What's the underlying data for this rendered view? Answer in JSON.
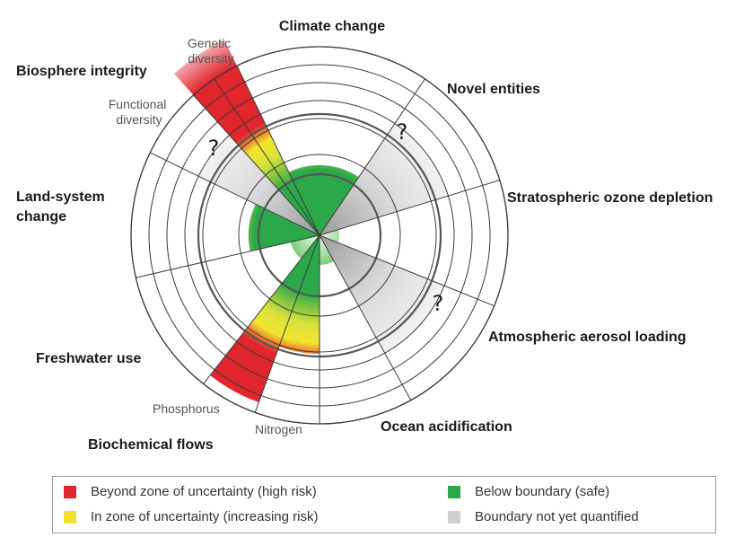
{
  "chart_data": {
    "type": "radial-bar",
    "title": "",
    "axes": [
      {
        "key": "climate",
        "label": "Climate change",
        "status": "increasing risk",
        "level": 0.71
      },
      {
        "key": "novel",
        "label": "Novel entities",
        "status": "not quantified",
        "unknown": true
      },
      {
        "key": "ozone",
        "label": "Stratospheric ozone depletion",
        "status": "safe",
        "level": 0.2
      },
      {
        "key": "aerosol",
        "label": "Atmospheric aerosol loading",
        "status": "not quantified",
        "unknown": true
      },
      {
        "key": "ocean",
        "label": "Ocean acidification",
        "status": "safe",
        "level": 0.3
      },
      {
        "key": "biochem",
        "label": "Biochemical flows",
        "status": "high risk",
        "sub": [
          {
            "label": "Phosphorus",
            "status": "high risk",
            "level": 1.2
          },
          {
            "label": "Nitrogen",
            "status": "high risk",
            "level": 1.8
          }
        ]
      },
      {
        "key": "fresh",
        "label": "Freshwater use",
        "status": "safe",
        "level": 0.3
      },
      {
        "key": "land",
        "label": "Land-system change",
        "status": "increasing risk",
        "level": 0.72
      },
      {
        "key": "bio",
        "label": "Biosphere integrity",
        "status": "high risk",
        "sub": [
          {
            "label": "Functional diversity",
            "status": "not quantified",
            "unknown": true
          },
          {
            "label": "Genetic diversity",
            "status": "high risk",
            "level": 2.2
          }
        ]
      }
    ],
    "legend": {
      "high": "Beyond zone of uncertainty (high risk)",
      "increasing": "In zone of uncertainty (increasing risk)",
      "safe": "Below boundary (safe)",
      "unknown": "Boundary not yet quantified"
    },
    "unknown_mark": "?",
    "colors": {
      "high": "#e2262e",
      "increasing": "#f0e22c",
      "safe": "#2aa84a",
      "unknown": "#cfcfcf"
    }
  }
}
